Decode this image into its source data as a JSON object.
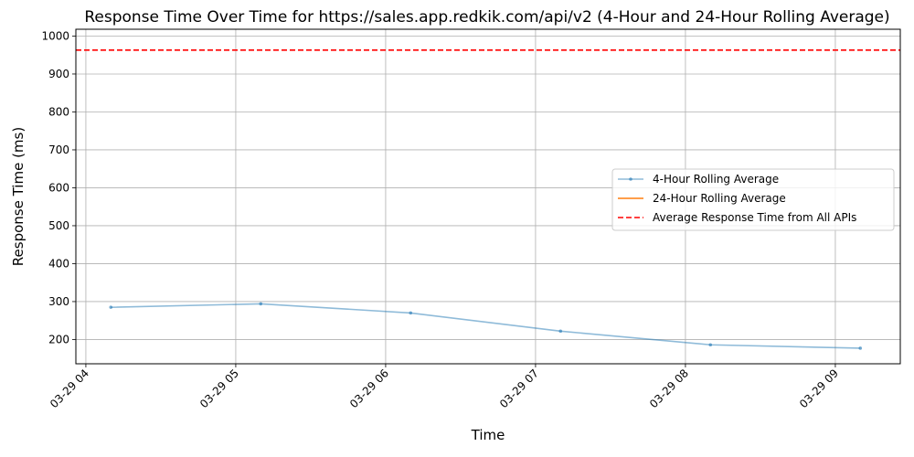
{
  "chart_data": {
    "type": "line",
    "title": "Response Time Over Time for https://sales.app.redkik.com/api/v2 (4-Hour and 24-Hour Rolling Average)",
    "xlabel": "Time",
    "ylabel": "Response Time (ms)",
    "x_ticks": [
      "03-29 04",
      "03-29 05",
      "03-29 06",
      "03-29 07",
      "03-29 08",
      "03-29 09"
    ],
    "y_ticks": [
      "200",
      "300",
      "400",
      "500",
      "600",
      "700",
      "800",
      "900",
      "1000"
    ],
    "xlim": [
      "2024-03-29 03:56",
      "2024-03-29 09:26"
    ],
    "ylim": [
      136,
      1018
    ],
    "grid": true,
    "legend_position": "center-right",
    "series": [
      {
        "name": "4-Hour Rolling Average",
        "color": "#1f77b4",
        "x": [
          "03-29 04:10",
          "03-29 05:10",
          "03-29 06:10",
          "03-29 07:10",
          "03-29 08:10",
          "03-29 09:10"
        ],
        "values": [
          285,
          294,
          270,
          222,
          186,
          177
        ]
      },
      {
        "name": "24-Hour Rolling Average",
        "color": "#ff7f0e",
        "x": [],
        "values": []
      }
    ],
    "reference_lines": [
      {
        "name": "Average Response Time from All APIs",
        "value": 963,
        "color": "#ff0000",
        "style": "dashed"
      }
    ]
  }
}
